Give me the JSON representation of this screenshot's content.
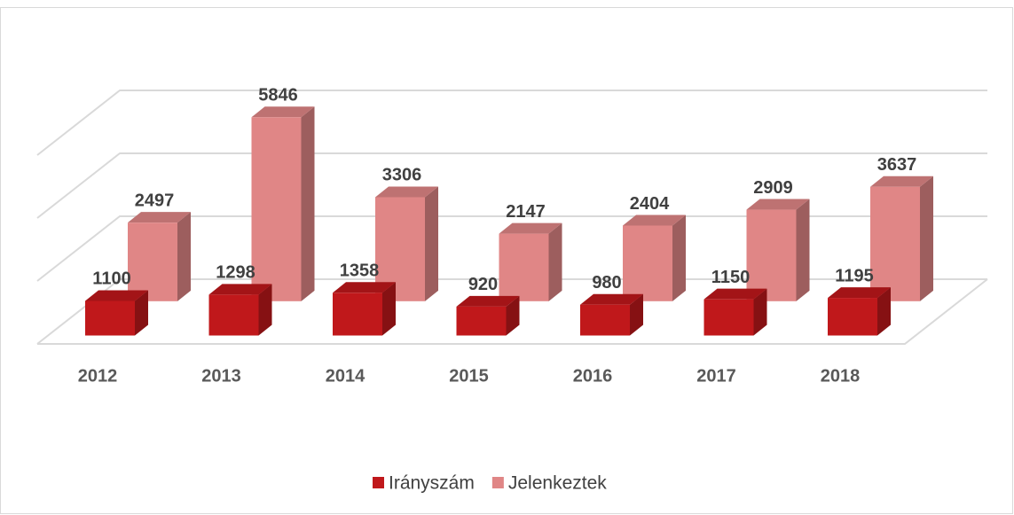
{
  "chart_data": {
    "type": "bar3d",
    "categories": [
      "2012",
      "2013",
      "2014",
      "2015",
      "2016",
      "2017",
      "2018"
    ],
    "series": [
      {
        "name": "Irányszám",
        "color": "#c0181b",
        "values": [
          1100,
          1298,
          1358,
          920,
          980,
          1150,
          1195
        ]
      },
      {
        "name": "Jelenkeztek",
        "color": "#e08686",
        "values": [
          2497,
          5846,
          3306,
          2147,
          2404,
          2909,
          3637
        ]
      }
    ],
    "ylim": [
      0,
      6000
    ],
    "yticks": [
      0,
      2000,
      4000,
      6000
    ],
    "grid": true,
    "legend": "bottom"
  }
}
